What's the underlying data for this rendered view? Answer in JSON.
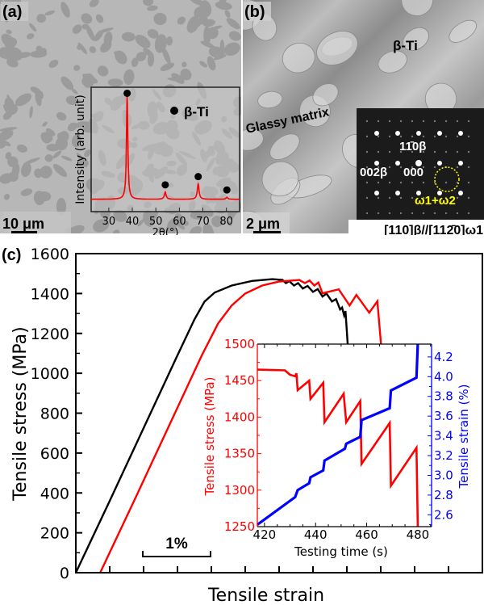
{
  "panels": {
    "a": {
      "label": "(a)",
      "scale_bar": "10 μm",
      "xrd_inset": {
        "ylabel": "Intensity (arb. unit)",
        "xlabel": "2θ(°)",
        "legend": "β-Ti",
        "xticks": [
          "30",
          "40",
          "50",
          "60",
          "70",
          "80"
        ]
      }
    },
    "b": {
      "label": "(b)",
      "scale_bar": "2 μm",
      "phase_label": "β-Ti",
      "matrix_label": "Glassy matrix",
      "saed": {
        "spot_top": "11̄0β",
        "spot_left": "002β",
        "spot_center": "000",
        "circled": "ω1+ω2",
        "zone_axis": "[110]β//[112̄0]ω1",
        "highlight_color": "#ffff00"
      }
    },
    "c": {
      "label": "(c)",
      "ylabel": "Tensile stress (MPa)",
      "xlabel": "Tensile strain",
      "scale_bar": "1%",
      "yticks": [
        "0",
        "200",
        "400",
        "600",
        "800",
        "1000",
        "1200",
        "1400",
        "1600"
      ],
      "inset": {
        "xlabel": "Testing time (s)",
        "ylabel_left": "Tensile stress (MPa)",
        "ylabel_right": "Tensile strain (%)",
        "xticks": [
          "420",
          "440",
          "460",
          "480"
        ],
        "yticks_left": [
          "1250",
          "1300",
          "1350",
          "1400",
          "1450",
          "1500"
        ],
        "yticks_right": [
          "2.6",
          "2.8",
          "3.0",
          "3.2",
          "3.4",
          "3.6",
          "3.8",
          "4.0",
          "4.2"
        ]
      }
    }
  },
  "chart_data": [
    {
      "type": "line",
      "panel": "a-inset",
      "xlabel": "2θ(°)",
      "ylabel": "Intensity (arb. unit)",
      "xlim": [
        22.5,
        85.6
      ],
      "ylim": [
        -0.12,
        1.09
      ],
      "color": "#ff0000",
      "peaks": [
        {
          "two_theta": 37.8,
          "intensity": 1.0,
          "phase": "β-Ti"
        },
        {
          "two_theta": 54.0,
          "intensity": 0.07,
          "phase": "β-Ti"
        },
        {
          "two_theta": 68.0,
          "intensity": 0.15,
          "phase": "β-Ti"
        },
        {
          "two_theta": 80.2,
          "intensity": 0.02,
          "phase": "β-Ti"
        }
      ]
    },
    {
      "type": "line",
      "panel": "c",
      "xlabel": "Tensile strain",
      "ylabel": "Tensile stress (MPa)",
      "xunit": "%",
      "xlim": [
        0,
        6.0
      ],
      "ylim": [
        0,
        1600
      ],
      "series": [
        {
          "color": "#000000",
          "points": [
            [
              0,
              0
            ],
            [
              0.5,
              360
            ],
            [
              1.0,
              725
            ],
            [
              1.5,
              1090
            ],
            [
              1.75,
              1270
            ],
            [
              1.9,
              1360
            ],
            [
              2.05,
              1405
            ],
            [
              2.3,
              1440
            ],
            [
              2.6,
              1463
            ],
            [
              2.9,
              1472
            ],
            [
              3.05,
              1468
            ],
            [
              3.1,
              1452
            ],
            [
              3.15,
              1462
            ],
            [
              3.22,
              1440
            ],
            [
              3.28,
              1452
            ],
            [
              3.35,
              1425
            ],
            [
              3.42,
              1438
            ],
            [
              3.5,
              1408
            ],
            [
              3.57,
              1422
            ],
            [
              3.64,
              1385
            ],
            [
              3.7,
              1400
            ],
            [
              3.78,
              1360
            ],
            [
              3.84,
              1372
            ],
            [
              3.9,
              1320
            ],
            [
              3.93,
              1330
            ],
            [
              3.96,
              1290
            ],
            [
              3.98,
              1312
            ],
            [
              4.04,
              1000
            ]
          ]
        },
        {
          "color": "#ff0000",
          "points": [
            [
              0.36,
              0
            ],
            [
              0.86,
              360
            ],
            [
              1.36,
              725
            ],
            [
              1.86,
              1090
            ],
            [
              2.1,
              1250
            ],
            [
              2.3,
              1340
            ],
            [
              2.5,
              1400
            ],
            [
              2.75,
              1440
            ],
            [
              3.0,
              1460
            ],
            [
              3.3,
              1468
            ],
            [
              3.38,
              1452
            ],
            [
              3.45,
              1465
            ],
            [
              3.52,
              1440
            ],
            [
              3.58,
              1455
            ],
            [
              3.64,
              1401
            ],
            [
              3.88,
              1421
            ],
            [
              4.04,
              1340
            ],
            [
              4.14,
              1393
            ],
            [
              4.33,
              1304
            ],
            [
              4.45,
              1361
            ],
            [
              4.54,
              1000
            ]
          ]
        }
      ]
    },
    {
      "type": "line",
      "panel": "c-inset",
      "xlabel": "Testing time (s)",
      "xlim": [
        417.2,
        485.4
      ],
      "ylim_left": [
        1250,
        1500
      ],
      "ylim_right": [
        2.48,
        4.33
      ],
      "series": [
        {
          "axis": "left",
          "color": "#ff0000",
          "points": [
            [
              417.2,
              1465
            ],
            [
              428,
              1464
            ],
            [
              430,
              1458
            ],
            [
              432,
              1456
            ],
            [
              432.5,
              1460
            ],
            [
              433,
              1437
            ],
            [
              437.5,
              1450
            ],
            [
              438,
              1425
            ],
            [
              443,
              1447
            ],
            [
              443.5,
              1393
            ],
            [
              451,
              1432
            ],
            [
              452,
              1393
            ],
            [
              457.5,
              1422
            ],
            [
              458,
              1336
            ],
            [
              469,
              1392
            ],
            [
              469.5,
              1306
            ],
            [
              479.5,
              1358
            ],
            [
              480,
              1250
            ]
          ]
        },
        {
          "axis": "right",
          "color": "#0000ff",
          "points": [
            [
              417.2,
              2.5
            ],
            [
              432,
              2.78
            ],
            [
              433,
              2.85
            ],
            [
              437.5,
              2.92
            ],
            [
              438,
              2.98
            ],
            [
              443,
              3.05
            ],
            [
              443.5,
              3.15
            ],
            [
              451.5,
              3.27
            ],
            [
              452,
              3.32
            ],
            [
              457.5,
              3.39
            ],
            [
              458,
              3.56
            ],
            [
              469,
              3.68
            ],
            [
              469.5,
              3.86
            ],
            [
              479.5,
              3.99
            ],
            [
              480,
              4.33
            ]
          ]
        }
      ]
    }
  ]
}
